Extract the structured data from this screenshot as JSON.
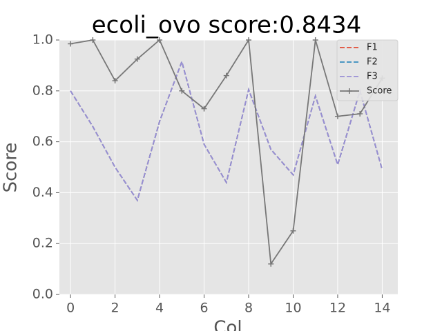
{
  "chart_data": {
    "type": "line",
    "title": "ecoli_ovo score:0.8434",
    "xlabel": "Col",
    "ylabel": "Score",
    "x": [
      0,
      1,
      2,
      3,
      4,
      5,
      6,
      7,
      8,
      9,
      10,
      11,
      12,
      13,
      14
    ],
    "series": [
      {
        "name": "F1",
        "color": "#E24A33",
        "linestyle": "dashed",
        "values": [
          0.8,
          0.66,
          0.5,
          0.37,
          0.68,
          0.915,
          0.59,
          0.44,
          0.805,
          0.57,
          0.47,
          0.78,
          0.51,
          0.8,
          0.49
        ]
      },
      {
        "name": "F2",
        "color": "#348ABD",
        "linestyle": "dashed",
        "values": [
          0.8,
          0.66,
          0.5,
          0.37,
          0.68,
          0.915,
          0.59,
          0.44,
          0.805,
          0.57,
          0.47,
          0.78,
          0.51,
          0.8,
          0.49
        ]
      },
      {
        "name": "F3",
        "color": "#988ED5",
        "linestyle": "dashed",
        "values": [
          0.8,
          0.66,
          0.5,
          0.37,
          0.68,
          0.915,
          0.59,
          0.44,
          0.805,
          0.57,
          0.47,
          0.78,
          0.51,
          0.8,
          0.49
        ]
      },
      {
        "name": "Score",
        "color": "#777777",
        "linestyle": "solid",
        "marker": "+",
        "values": [
          0.985,
          1.0,
          0.84,
          0.925,
          1.0,
          0.8,
          0.73,
          0.86,
          1.0,
          0.12,
          0.25,
          1.0,
          0.7,
          0.71,
          0.85
        ]
      }
    ],
    "xlim": [
      -0.5,
      14.7
    ],
    "ylim": [
      0,
      1
    ],
    "xticks": [
      0,
      2,
      4,
      6,
      8,
      10,
      12,
      14
    ],
    "yticks": [
      {
        "value": 0,
        "label": "0.0"
      },
      {
        "value": 0.2,
        "label": "0.2"
      },
      {
        "value": 0.4,
        "label": "0.4"
      },
      {
        "value": 0.6,
        "label": "0.6"
      },
      {
        "value": 0.8,
        "label": "0.8"
      },
      {
        "value": 1,
        "label": "1.0"
      }
    ],
    "grid": true,
    "legend": "upper right"
  }
}
